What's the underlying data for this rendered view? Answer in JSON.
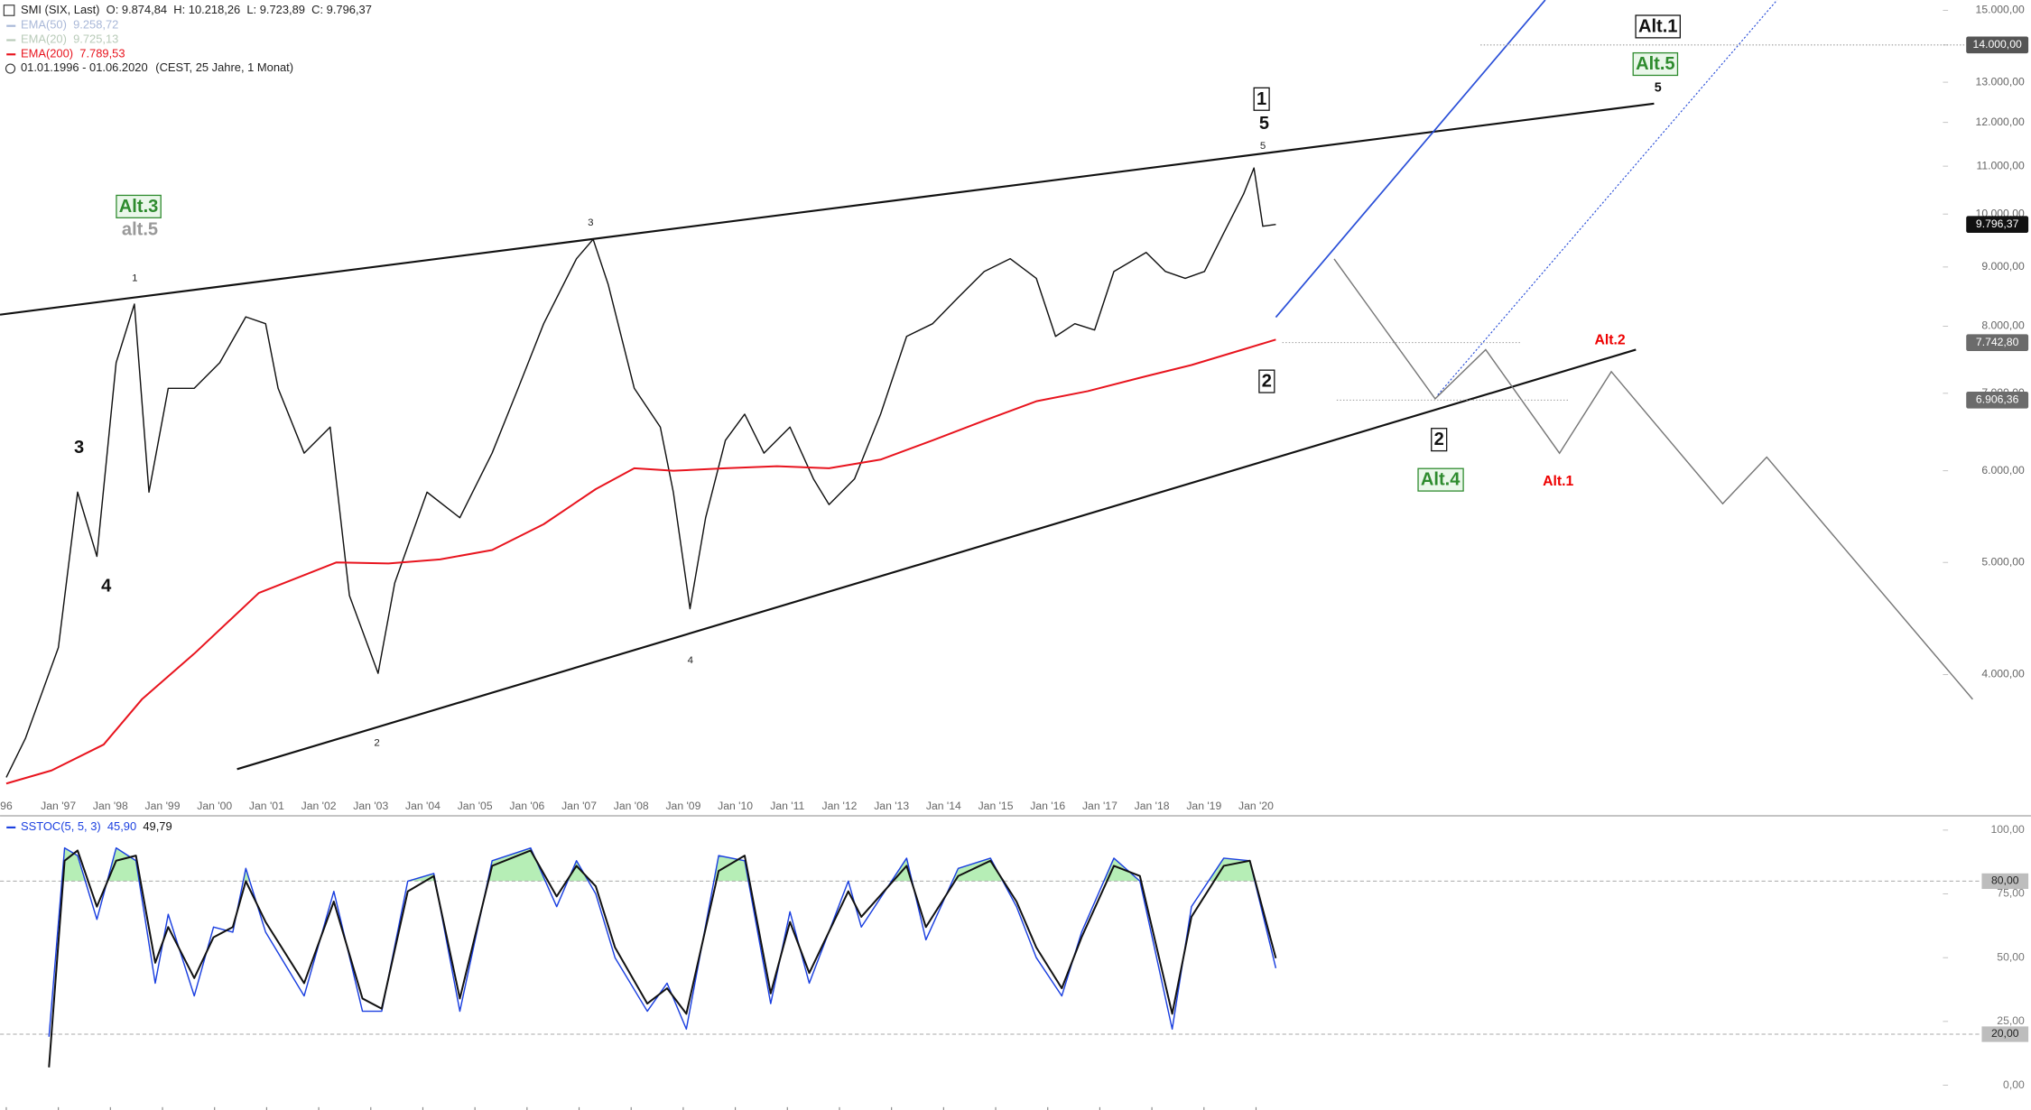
{
  "chart_data": [
    {
      "type": "line",
      "log_scale": true,
      "header": {
        "o": "O: 9.874,84",
        "h": "H: 10.218,26",
        "l": "L: 9.723,89",
        "c": "C: 9.796,37",
        "period": "01.01.1996 - 01.06.2020",
        "period_note": "(CEST, 25 Jahre, 1 Monat)"
      },
      "legend_extra": [
        {
          "name": "EMA(50)",
          "value": "9.258,72",
          "color": "#a9b8d8"
        },
        {
          "name": "EMA(20)",
          "value": "9.725,13",
          "color": "#b9cbb9"
        }
      ],
      "x": [
        1996.0,
        1996.37,
        1997.0,
        1997.37,
        1997.74,
        1998.11,
        1998.46,
        1998.74,
        1999.11,
        1999.61,
        2000.1,
        2000.6,
        2000.98,
        2001.22,
        2001.72,
        2002.22,
        2002.59,
        2003.14,
        2003.46,
        2004.08,
        2004.71,
        2005.33,
        2005.83,
        2006.32,
        2006.95,
        2007.27,
        2007.56,
        2008.06,
        2008.56,
        2008.81,
        2009.13,
        2009.43,
        2009.81,
        2010.18,
        2010.55,
        2011.05,
        2011.5,
        2011.8,
        2012.29,
        2012.79,
        2013.29,
        2013.79,
        2014.28,
        2014.78,
        2015.28,
        2015.78,
        2016.15,
        2016.52,
        2016.9,
        2017.27,
        2017.89,
        2018.26,
        2018.64,
        2019.01,
        2019.38,
        2019.76,
        2019.96,
        2020.13,
        2020.38
      ],
      "series": [
        {
          "name": "SMI (SIX, Last)",
          "color": "#111111",
          "values": [
            3260,
            3525,
            4220,
            5750,
            5060,
            7440,
            8360,
            5750,
            7070,
            7070,
            7440,
            8150,
            8040,
            7070,
            6215,
            6545,
            4680,
            4010,
            4800,
            5750,
            5465,
            6215,
            7070,
            8040,
            9150,
            9510,
            8690,
            7070,
            6545,
            5750,
            4560,
            5465,
            6375,
            6715,
            6215,
            6545,
            5905,
            5610,
            5905,
            6715,
            7840,
            8040,
            8470,
            8920,
            9150,
            8800,
            7840,
            8040,
            7940,
            8920,
            9265,
            8920,
            8800,
            8920,
            9630,
            10405,
            10960,
            9760,
            9796.37
          ]
        },
        {
          "name": "EMA(200)",
          "color": "#e8141e",
          "last_label": "7.789,53",
          "x": [
            1996.0,
            1996.87,
            1997.87,
            1998.61,
            1999.61,
            2000.85,
            2002.34,
            2003.34,
            2004.33,
            2005.33,
            2006.32,
            2007.32,
            2008.06,
            2008.81,
            2009.81,
            2010.8,
            2011.8,
            2012.79,
            2013.79,
            2014.78,
            2015.78,
            2016.77,
            2017.77,
            2018.76,
            2019.76,
            2020.38
          ],
          "values": [
            3220,
            3305,
            3480,
            3810,
            4170,
            4705,
            5000,
            4990,
            5030,
            5125,
            5395,
            5785,
            6030,
            6000,
            6030,
            6055,
            6030,
            6135,
            6375,
            6630,
            6890,
            7030,
            7220,
            7405,
            7640,
            7789.53
          ]
        }
      ],
      "xlim": [
        1995.88,
        2033.19
      ],
      "xticks": [
        {
          "value": 1996,
          "label": "96"
        },
        {
          "value": 1997,
          "label": "Jan '97"
        },
        {
          "value": 1998,
          "label": "Jan '98"
        },
        {
          "value": 1999,
          "label": "Jan '99"
        },
        {
          "value": 2000,
          "label": "Jan '00"
        },
        {
          "value": 2001,
          "label": "Jan '01"
        },
        {
          "value": 2002,
          "label": "Jan '02"
        },
        {
          "value": 2003,
          "label": "Jan '03"
        },
        {
          "value": 2004,
          "label": "Jan '04"
        },
        {
          "value": 2005,
          "label": "Jan '05"
        },
        {
          "value": 2006,
          "label": "Jan '06"
        },
        {
          "value": 2007,
          "label": "Jan '07"
        },
        {
          "value": 2008,
          "label": "Jan '08"
        },
        {
          "value": 2009,
          "label": "Jan '09"
        },
        {
          "value": 2010,
          "label": "Jan '10"
        },
        {
          "value": 2011,
          "label": "Jan '11"
        },
        {
          "value": 2012,
          "label": "Jan '12"
        },
        {
          "value": 2013,
          "label": "Jan '13"
        },
        {
          "value": 2014,
          "label": "Jan '14"
        },
        {
          "value": 2015,
          "label": "Jan '15"
        },
        {
          "value": 2016,
          "label": "Jan '16"
        },
        {
          "value": 2017,
          "label": "Jan '17"
        },
        {
          "value": 2018,
          "label": "Jan '18"
        },
        {
          "value": 2019,
          "label": "Jan '19"
        },
        {
          "value": 2020,
          "label": "Jan '20"
        }
      ],
      "ylim": [
        3020,
        15310
      ],
      "yticks": [
        {
          "value": 4000,
          "label": "4.000,00"
        },
        {
          "value": 5000,
          "label": "5.000,00"
        },
        {
          "value": 6000,
          "label": "6.000,00"
        },
        {
          "value": 7000,
          "label": "7.000,00"
        },
        {
          "value": 8000,
          "label": "8.000,00"
        },
        {
          "value": 9000,
          "label": "9.000,00"
        },
        {
          "value": 10000,
          "label": "10.000,00"
        },
        {
          "value": 11000,
          "label": "11.000,00"
        },
        {
          "value": 12000,
          "label": "12.000,00"
        },
        {
          "value": 13000,
          "label": "13.000,00"
        },
        {
          "value": 14000,
          "label": "14.000,00"
        },
        {
          "value": 15000,
          "label": "15.000,00"
        }
      ],
      "price_markers": [
        {
          "value": 14000,
          "label": "14.000,00",
          "color": "#555555"
        },
        {
          "value": 9796.37,
          "label": "9.796,37",
          "color": "#111111"
        },
        {
          "value": 7742.8,
          "label": "7.742,80",
          "color": "#6b6b6b"
        },
        {
          "value": 6906.36,
          "label": "6.906,36",
          "color": "#6b6b6b"
        }
      ],
      "annotations": [
        "1",
        "5",
        "2",
        "Alt.1",
        "Alt.5",
        "5",
        "Alt.3",
        "alt.5",
        "3",
        "4",
        "Alt.2",
        "2",
        "Alt.4",
        "Alt.1",
        "1",
        "3",
        "2",
        "4",
        "5"
      ]
    },
    {
      "type": "line",
      "x": [
        1996.82,
        1997.12,
        1997.37,
        1997.74,
        1998.11,
        1998.49,
        1998.86,
        1999.11,
        1999.61,
        1999.98,
        2000.35,
        2000.6,
        2000.98,
        2001.72,
        2002.29,
        2002.84,
        2003.21,
        2003.71,
        2004.21,
        2004.71,
        2005.33,
        2006.07,
        2006.57,
        2006.95,
        2007.32,
        2007.69,
        2008.31,
        2008.69,
        2009.06,
        2009.68,
        2010.18,
        2010.68,
        2011.05,
        2011.42,
        2012.17,
        2012.42,
        2013.29,
        2013.66,
        2014.28,
        2014.9,
        2015.4,
        2015.78,
        2016.27,
        2016.65,
        2017.27,
        2017.77,
        2018.39,
        2018.76,
        2019.38,
        2019.88,
        2020.38
      ],
      "series": [
        {
          "name": "SSTOC(5, 5, 3)",
          "color": "#1a3fe0",
          "last_label": "45,90",
          "values": [
            19,
            93,
            90,
            65,
            93,
            88,
            40,
            67,
            35,
            62,
            60,
            85,
            60,
            35,
            76,
            29,
            29,
            80,
            83,
            29,
            88,
            93,
            70,
            88,
            75,
            50,
            29,
            40,
            22,
            90,
            88,
            32,
            68,
            40,
            80,
            62,
            89,
            57,
            85,
            89,
            70,
            50,
            35,
            60,
            89,
            80,
            22,
            70,
            89,
            88,
            45.9
          ]
        },
        {
          "color": "#111111",
          "last_label": "49,79",
          "values": [
            7,
            88,
            92,
            70,
            88,
            90,
            48,
            62,
            42,
            58,
            62,
            80,
            64,
            40,
            72,
            34,
            30,
            76,
            82,
            34,
            86,
            92,
            74,
            86,
            78,
            54,
            32,
            38,
            28,
            84,
            90,
            36,
            64,
            44,
            76,
            66,
            86,
            62,
            82,
            88,
            72,
            54,
            38,
            58,
            86,
            82,
            28,
            66,
            86,
            88,
            49.79
          ]
        }
      ],
      "ylim": [
        -8.6,
        104.6
      ],
      "yticks": [
        {
          "value": 0,
          "label": "0,00"
        },
        {
          "value": 25,
          "label": "25,00"
        },
        {
          "value": 50,
          "label": "50,00"
        },
        {
          "value": 75,
          "label": "75,00"
        },
        {
          "value": 100,
          "label": "100,00"
        }
      ],
      "level_markers": [
        {
          "value": 80,
          "label": "80,00",
          "color": "#bdbdbd"
        },
        {
          "value": 20,
          "label": "20,00",
          "color": "#bdbdbd"
        }
      ],
      "overbought_color": "#b6eeb6"
    }
  ]
}
